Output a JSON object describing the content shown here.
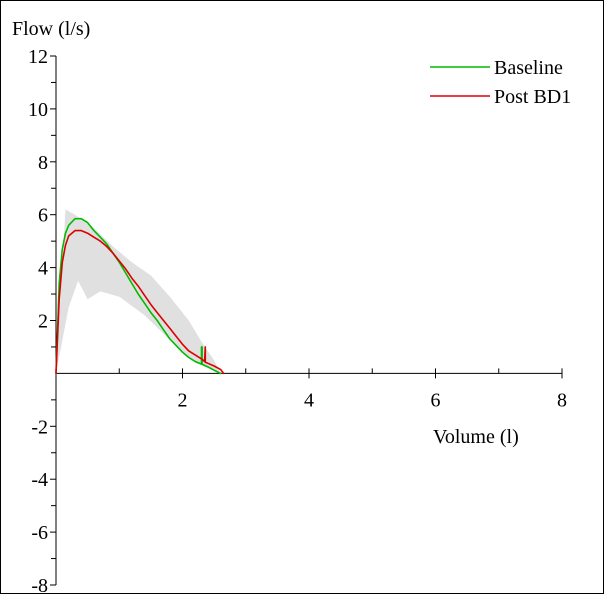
{
  "chart_data": {
    "type": "line",
    "title": "",
    "xlabel": "Volume (l)",
    "ylabel": "Flow (l/s)",
    "xlim": [
      0,
      8
    ],
    "ylim": [
      -8,
      12
    ],
    "x_ticks": [
      2,
      4,
      6,
      8
    ],
    "y_ticks": [
      12,
      10,
      8,
      6,
      4,
      2,
      -2,
      -4,
      -6,
      -8
    ],
    "grid": false,
    "legend_position": "top-right",
    "reference_band": {
      "color": "#e0e0e0",
      "upper": [
        [
          0,
          0
        ],
        [
          0.15,
          6.2
        ],
        [
          0.3,
          6.0
        ],
        [
          0.6,
          5.5
        ],
        [
          0.9,
          4.8
        ],
        [
          1.2,
          4.2
        ],
        [
          1.5,
          3.7
        ],
        [
          1.8,
          2.9
        ],
        [
          2.1,
          2.0
        ],
        [
          2.3,
          1.2
        ],
        [
          2.5,
          0.5
        ],
        [
          2.6,
          0
        ]
      ],
      "lower": [
        [
          2.6,
          0
        ],
        [
          2.4,
          0.2
        ],
        [
          2.2,
          0.4
        ],
        [
          2.0,
          0.8
        ],
        [
          1.7,
          1.5
        ],
        [
          1.4,
          2.2
        ],
        [
          1.0,
          2.9
        ],
        [
          0.7,
          3.1
        ],
        [
          0.5,
          2.8
        ],
        [
          0.35,
          3.5
        ],
        [
          0.2,
          2.5
        ],
        [
          0,
          0
        ]
      ]
    },
    "series": [
      {
        "name": "Baseline",
        "color": "#00bb00",
        "x": [
          0,
          0.05,
          0.1,
          0.15,
          0.2,
          0.3,
          0.4,
          0.5,
          0.6,
          0.7,
          0.8,
          0.9,
          1.0,
          1.1,
          1.2,
          1.3,
          1.4,
          1.5,
          1.6,
          1.7,
          1.8,
          1.9,
          2.0,
          2.1,
          2.2,
          2.3,
          2.3,
          2.31,
          2.31,
          2.35,
          2.4,
          2.5,
          2.6
        ],
        "y": [
          0,
          3.4,
          4.7,
          5.3,
          5.6,
          5.85,
          5.85,
          5.7,
          5.4,
          5.15,
          4.9,
          4.55,
          4.2,
          3.8,
          3.4,
          3.0,
          2.65,
          2.3,
          2.0,
          1.65,
          1.3,
          1.05,
          0.8,
          0.6,
          0.45,
          0.35,
          1.0,
          1.0,
          0.35,
          0.3,
          0.25,
          0.12,
          0
        ]
      },
      {
        "name": "Post BD1",
        "color": "#dd0000",
        "x": [
          0,
          0.05,
          0.1,
          0.15,
          0.2,
          0.3,
          0.4,
          0.5,
          0.6,
          0.7,
          0.8,
          0.9,
          1.0,
          1.1,
          1.2,
          1.3,
          1.4,
          1.5,
          1.6,
          1.7,
          1.8,
          1.9,
          2.0,
          2.1,
          2.2,
          2.3,
          2.35,
          2.36,
          2.36,
          2.4,
          2.5,
          2.6,
          2.65
        ],
        "y": [
          0,
          2.8,
          4.2,
          4.85,
          5.2,
          5.4,
          5.4,
          5.3,
          5.15,
          5.0,
          4.8,
          4.55,
          4.25,
          3.95,
          3.6,
          3.3,
          2.95,
          2.6,
          2.3,
          2.0,
          1.7,
          1.4,
          1.1,
          0.85,
          0.7,
          0.55,
          0.45,
          1.0,
          0.42,
          0.38,
          0.28,
          0.15,
          0
        ]
      }
    ]
  }
}
